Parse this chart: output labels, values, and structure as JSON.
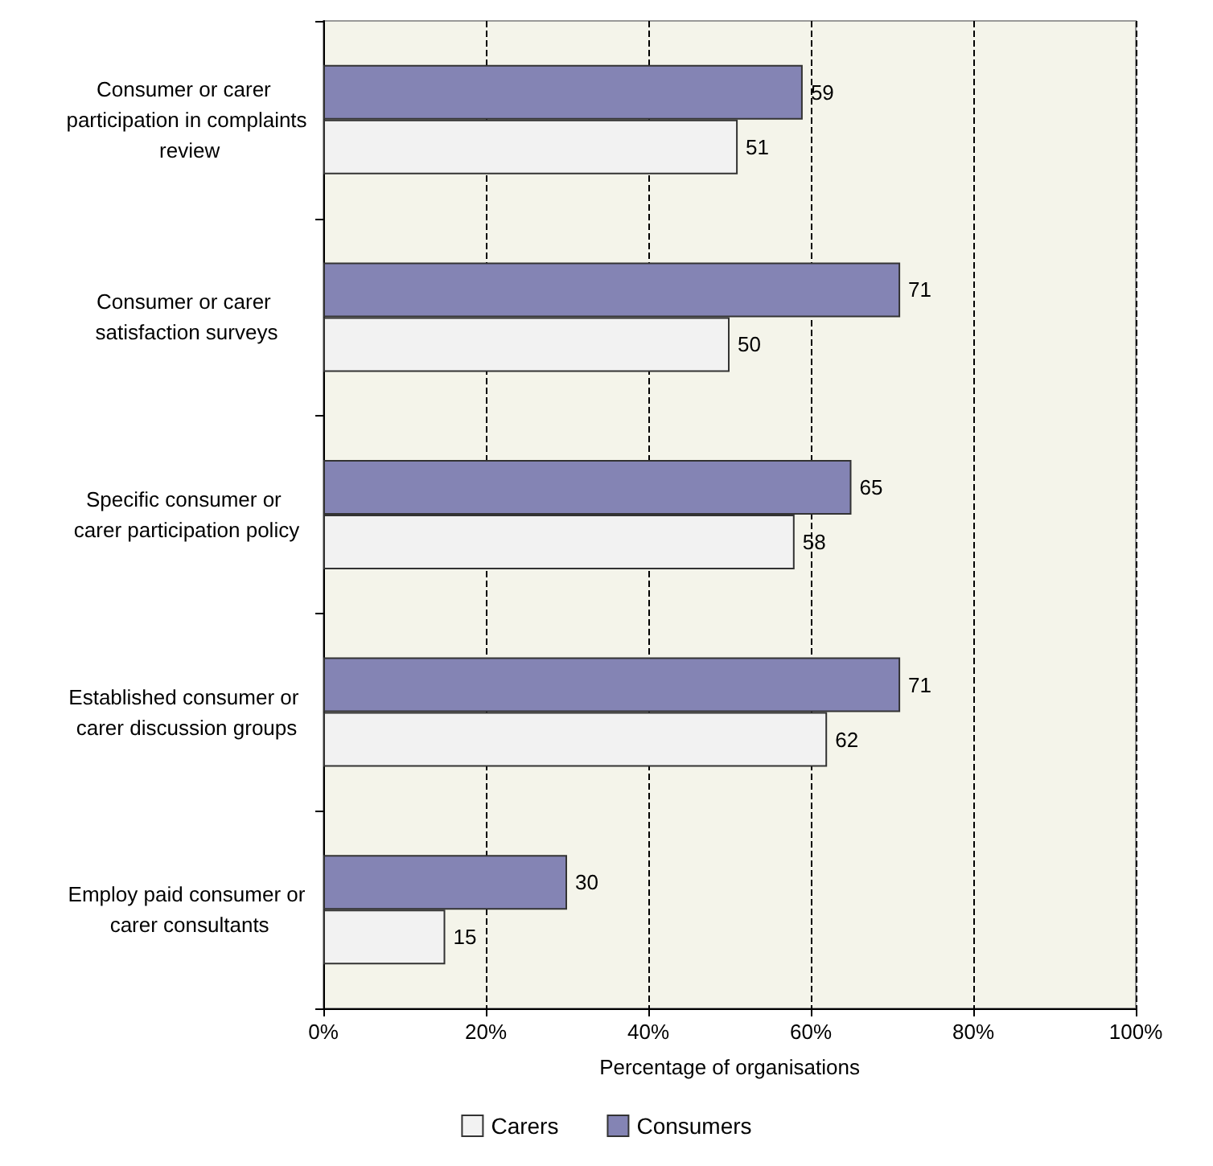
{
  "chart_data": {
    "type": "bar",
    "orientation": "horizontal",
    "xlabel": "Percentage of organisations",
    "categories": [
      "Consumer or carer participation in complaints review",
      "Consumer or carer satisfaction surveys",
      "Specific consumer or carer participation policy",
      "Established consumer or carer discussion groups",
      "Employ paid consumer or carer consultants"
    ],
    "series": [
      {
        "name": "Consumers",
        "color": "#8484b4",
        "values": [
          59,
          71,
          65,
          71,
          30
        ]
      },
      {
        "name": "Carers",
        "color": "#f2f2f2",
        "values": [
          51,
          50,
          58,
          62,
          15
        ]
      }
    ],
    "xlim": [
      0,
      100
    ],
    "xticks": [
      {
        "value": 0,
        "label": "0%"
      },
      {
        "value": 20,
        "label": "20%"
      },
      {
        "value": 40,
        "label": "40%"
      },
      {
        "value": 60,
        "label": "60%"
      },
      {
        "value": 80,
        "label": "80%"
      },
      {
        "value": 100,
        "label": "100%"
      }
    ],
    "grid": "x",
    "legend": "bottom",
    "data_labels": true
  }
}
